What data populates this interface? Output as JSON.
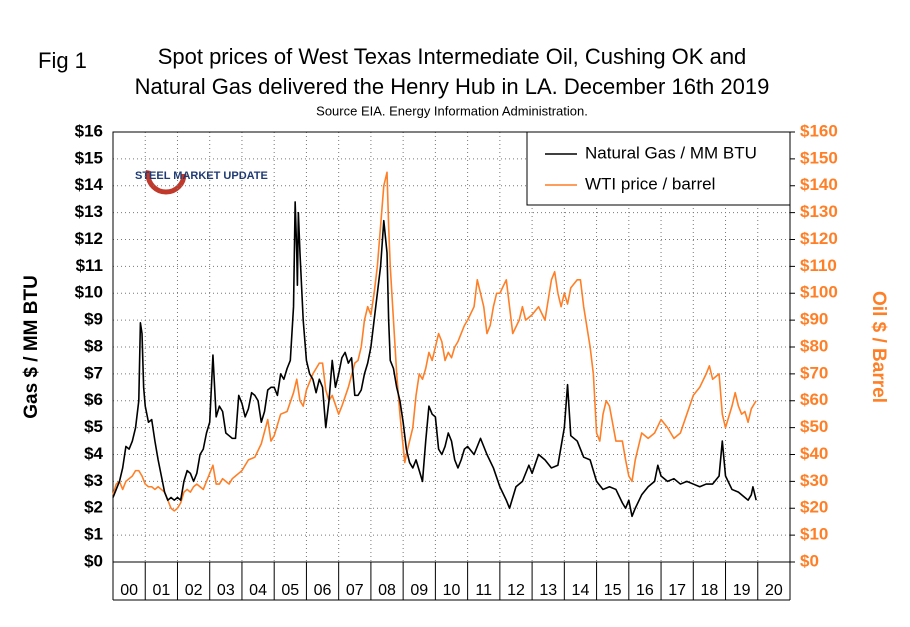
{
  "chart_data": {
    "type": "line",
    "fig_label": "Fig 1",
    "title": "Spot prices of West Texas Intermediate Oil, Cushing OK and",
    "title_line2": "Natural Gas delivered the Henry Hub in LA. December 16th 2019",
    "subtitle": "Source EIA. Energy Information Administration.",
    "logo_text": "STEEL MARKET UPDATE",
    "y_label": "Gas $ / MM BTU",
    "y2_label": "Oil $ / Barrel",
    "x_categories": [
      "00",
      "01",
      "02",
      "03",
      "04",
      "05",
      "06",
      "07",
      "08",
      "09",
      "10",
      "11",
      "12",
      "13",
      "14",
      "15",
      "16",
      "17",
      "18",
      "19",
      "20"
    ],
    "xlim": [
      0,
      21
    ],
    "xticks": [
      0,
      1,
      2,
      3,
      4,
      5,
      6,
      7,
      8,
      9,
      10,
      11,
      12,
      13,
      14,
      15,
      16,
      17,
      18,
      19,
      20,
      21
    ],
    "ylim": [
      0,
      16
    ],
    "yticks": [
      {
        "value": 0,
        "label": "$0"
      },
      {
        "value": 1,
        "label": "$1"
      },
      {
        "value": 2,
        "label": "$2"
      },
      {
        "value": 3,
        "label": "$3"
      },
      {
        "value": 4,
        "label": "$4"
      },
      {
        "value": 5,
        "label": "$5"
      },
      {
        "value": 6,
        "label": "$6"
      },
      {
        "value": 7,
        "label": "$7"
      },
      {
        "value": 8,
        "label": "$8"
      },
      {
        "value": 9,
        "label": "$9"
      },
      {
        "value": 10,
        "label": "$10"
      },
      {
        "value": 11,
        "label": "$11"
      },
      {
        "value": 12,
        "label": "$12"
      },
      {
        "value": 13,
        "label": "$13"
      },
      {
        "value": 14,
        "label": "$14"
      },
      {
        "value": 15,
        "label": "$15"
      },
      {
        "value": 16,
        "label": "$16"
      }
    ],
    "y2lim": [
      0,
      160
    ],
    "y2ticks": [
      {
        "value": 0,
        "label": "$0"
      },
      {
        "value": 10,
        "label": "$10"
      },
      {
        "value": 20,
        "label": "$20"
      },
      {
        "value": 30,
        "label": "$30"
      },
      {
        "value": 40,
        "label": "$40"
      },
      {
        "value": 50,
        "label": "$50"
      },
      {
        "value": 60,
        "label": "$60"
      },
      {
        "value": 70,
        "label": "$70"
      },
      {
        "value": 80,
        "label": "$80"
      },
      {
        "value": 90,
        "label": "$90"
      },
      {
        "value": 100,
        "label": "$100"
      },
      {
        "value": 110,
        "label": "$110"
      },
      {
        "value": 120,
        "label": "$120"
      },
      {
        "value": 130,
        "label": "$130"
      },
      {
        "value": 140,
        "label": "$140"
      },
      {
        "value": 150,
        "label": "$150"
      },
      {
        "value": 160,
        "label": "$160"
      }
    ],
    "y2_color": "#ff7f27",
    "grid": true,
    "legend": "top-right",
    "series": [
      {
        "name": "Natural Gas / MM BTU",
        "color": "#000000",
        "axis": "y",
        "x": [
          0,
          0.1,
          0.2,
          0.3,
          0.4,
          0.5,
          0.6,
          0.7,
          0.8,
          0.85,
          0.9,
          0.95,
          1,
          1.1,
          1.2,
          1.3,
          1.4,
          1.5,
          1.6,
          1.7,
          1.8,
          1.9,
          2,
          2.1,
          2.2,
          2.3,
          2.4,
          2.5,
          2.6,
          2.7,
          2.8,
          2.9,
          3,
          3.1,
          3.2,
          3.3,
          3.4,
          3.5,
          3.6,
          3.7,
          3.8,
          3.9,
          4,
          4.1,
          4.2,
          4.3,
          4.4,
          4.5,
          4.6,
          4.7,
          4.8,
          4.9,
          5,
          5.1,
          5.2,
          5.3,
          5.4,
          5.5,
          5.6,
          5.65,
          5.7,
          5.72,
          5.75,
          5.8,
          5.9,
          6,
          6.1,
          6.2,
          6.3,
          6.4,
          6.5,
          6.6,
          6.7,
          6.8,
          6.9,
          7,
          7.1,
          7.2,
          7.3,
          7.4,
          7.5,
          7.6,
          7.7,
          7.8,
          7.9,
          8,
          8.1,
          8.2,
          8.3,
          8.4,
          8.5,
          8.55,
          8.6,
          8.7,
          8.8,
          8.9,
          9,
          9.1,
          9.2,
          9.3,
          9.4,
          9.5,
          9.6,
          9.7,
          9.8,
          9.9,
          10,
          10.1,
          10.2,
          10.3,
          10.4,
          10.5,
          10.6,
          10.7,
          10.8,
          10.9,
          11,
          11.2,
          11.4,
          11.6,
          11.8,
          12,
          12.2,
          12.3,
          12.5,
          12.7,
          12.9,
          13,
          13.2,
          13.4,
          13.6,
          13.8,
          13.9,
          14,
          14.1,
          14.2,
          14.4,
          14.6,
          14.8,
          15,
          15.2,
          15.4,
          15.6,
          15.8,
          15.9,
          16,
          16.1,
          16.2,
          16.4,
          16.6,
          16.8,
          16.9,
          17,
          17.2,
          17.4,
          17.6,
          17.8,
          18,
          18.2,
          18.4,
          18.6,
          18.8,
          18.9,
          19,
          19.2,
          19.4,
          19.6,
          19.7,
          19.8,
          19.85,
          19.95
        ],
        "values": [
          2.4,
          2.7,
          3.0,
          3.5,
          4.3,
          4.2,
          4.5,
          5.0,
          6.0,
          8.9,
          8.5,
          6.5,
          5.8,
          5.2,
          5.3,
          4.5,
          3.8,
          3.2,
          2.6,
          2.3,
          2.4,
          2.3,
          2.4,
          2.3,
          3.0,
          3.4,
          3.3,
          3.0,
          3.3,
          4.0,
          4.2,
          4.8,
          5.2,
          7.7,
          5.4,
          5.8,
          5.6,
          4.8,
          4.7,
          4.6,
          4.6,
          6.2,
          5.9,
          5.4,
          5.7,
          6.3,
          6.2,
          6.0,
          5.2,
          5.6,
          6.4,
          6.5,
          6.5,
          6.2,
          7.0,
          6.8,
          7.2,
          7.5,
          9.5,
          13.4,
          11.5,
          10.3,
          13.0,
          11.5,
          9.0,
          7.5,
          7.0,
          6.8,
          6.3,
          6.8,
          6.5,
          5.0,
          6.0,
          7.5,
          6.5,
          7.0,
          7.6,
          7.8,
          7.4,
          7.6,
          6.2,
          6.2,
          6.4,
          7.0,
          7.4,
          8.0,
          9.0,
          10.0,
          11.0,
          12.7,
          11.5,
          9.0,
          7.5,
          7.2,
          6.5,
          6.0,
          5.2,
          4.2,
          3.7,
          3.5,
          3.8,
          3.4,
          3.0,
          4.5,
          5.8,
          5.5,
          5.4,
          4.2,
          4.0,
          4.3,
          4.8,
          4.5,
          3.8,
          3.5,
          3.8,
          4.2,
          4.3,
          4.0,
          4.6,
          4.0,
          3.5,
          2.8,
          2.3,
          2.0,
          2.8,
          3.0,
          3.6,
          3.3,
          4.0,
          3.8,
          3.5,
          3.6,
          4.3,
          5.0,
          6.6,
          4.7,
          4.5,
          3.9,
          3.8,
          3.0,
          2.7,
          2.8,
          2.7,
          2.2,
          2.0,
          2.3,
          1.7,
          2.0,
          2.5,
          2.8,
          3.0,
          3.6,
          3.2,
          3.0,
          3.1,
          2.9,
          3.0,
          2.9,
          2.8,
          2.9,
          2.9,
          3.2,
          4.5,
          3.2,
          2.7,
          2.6,
          2.4,
          2.3,
          2.5,
          2.8,
          2.3
        ]
      },
      {
        "name": "WTI price / barrel",
        "color": "#ff7f27",
        "axis": "y2",
        "x": [
          0,
          0.1,
          0.2,
          0.3,
          0.4,
          0.5,
          0.6,
          0.7,
          0.8,
          0.9,
          1,
          1.1,
          1.2,
          1.3,
          1.4,
          1.5,
          1.6,
          1.7,
          1.8,
          1.9,
          2,
          2.1,
          2.2,
          2.3,
          2.4,
          2.5,
          2.6,
          2.7,
          2.8,
          2.9,
          3,
          3.1,
          3.2,
          3.3,
          3.4,
          3.5,
          3.6,
          3.7,
          3.8,
          3.9,
          4,
          4.2,
          4.4,
          4.6,
          4.8,
          4.9,
          5,
          5.2,
          5.4,
          5.6,
          5.7,
          5.8,
          5.9,
          6,
          6.2,
          6.4,
          6.5,
          6.6,
          6.7,
          6.8,
          7,
          7.1,
          7.3,
          7.5,
          7.6,
          7.7,
          7.8,
          7.9,
          8,
          8.1,
          8.2,
          8.3,
          8.4,
          8.5,
          8.55,
          8.6,
          8.7,
          8.8,
          8.9,
          9,
          9.05,
          9.1,
          9.2,
          9.3,
          9.4,
          9.5,
          9.6,
          9.7,
          9.8,
          9.9,
          10,
          10.1,
          10.2,
          10.3,
          10.4,
          10.5,
          10.6,
          10.7,
          10.8,
          10.9,
          11,
          11.2,
          11.3,
          11.4,
          11.5,
          11.6,
          11.7,
          11.8,
          11.9,
          12,
          12.2,
          12.3,
          12.4,
          12.6,
          12.7,
          12.8,
          13,
          13.2,
          13.4,
          13.6,
          13.7,
          13.8,
          13.9,
          14,
          14.1,
          14.2,
          14.4,
          14.5,
          14.6,
          14.8,
          14.9,
          15,
          15.1,
          15.2,
          15.3,
          15.4,
          15.6,
          15.8,
          15.9,
          16,
          16.1,
          16.2,
          16.4,
          16.6,
          16.8,
          17,
          17.2,
          17.4,
          17.6,
          17.8,
          18,
          18.2,
          18.4,
          18.5,
          18.6,
          18.8,
          18.9,
          19,
          19.2,
          19.3,
          19.4,
          19.5,
          19.6,
          19.7,
          19.8,
          19.95
        ],
        "values": [
          25,
          29,
          30,
          27,
          30,
          31,
          32,
          34,
          34,
          32,
          29,
          28,
          28,
          27,
          28,
          27,
          26,
          23,
          20,
          19,
          20,
          22,
          26,
          27,
          26,
          28,
          29,
          28,
          27,
          30,
          33,
          36,
          29,
          29,
          31,
          30,
          29,
          31,
          32,
          33,
          34,
          38,
          39,
          44,
          53,
          45,
          47,
          55,
          56,
          63,
          68,
          60,
          58,
          64,
          70,
          74,
          74,
          64,
          60,
          62,
          55,
          58,
          65,
          74,
          75,
          80,
          90,
          95,
          92,
          100,
          110,
          125,
          140,
          145,
          125,
          110,
          90,
          70,
          55,
          43,
          37,
          40,
          45,
          50,
          62,
          70,
          68,
          72,
          78,
          75,
          80,
          85,
          82,
          75,
          78,
          76,
          80,
          82,
          85,
          88,
          90,
          95,
          105,
          100,
          95,
          85,
          88,
          95,
          100,
          100,
          105,
          95,
          85,
          90,
          95,
          90,
          92,
          95,
          90,
          105,
          108,
          100,
          95,
          100,
          96,
          102,
          105,
          105,
          95,
          80,
          70,
          48,
          45,
          55,
          60,
          58,
          45,
          45,
          38,
          32,
          30,
          38,
          48,
          46,
          48,
          53,
          50,
          46,
          48,
          55,
          62,
          65,
          70,
          73,
          68,
          70,
          55,
          50,
          58,
          63,
          58,
          55,
          56,
          52,
          57,
          60
        ]
      }
    ]
  }
}
